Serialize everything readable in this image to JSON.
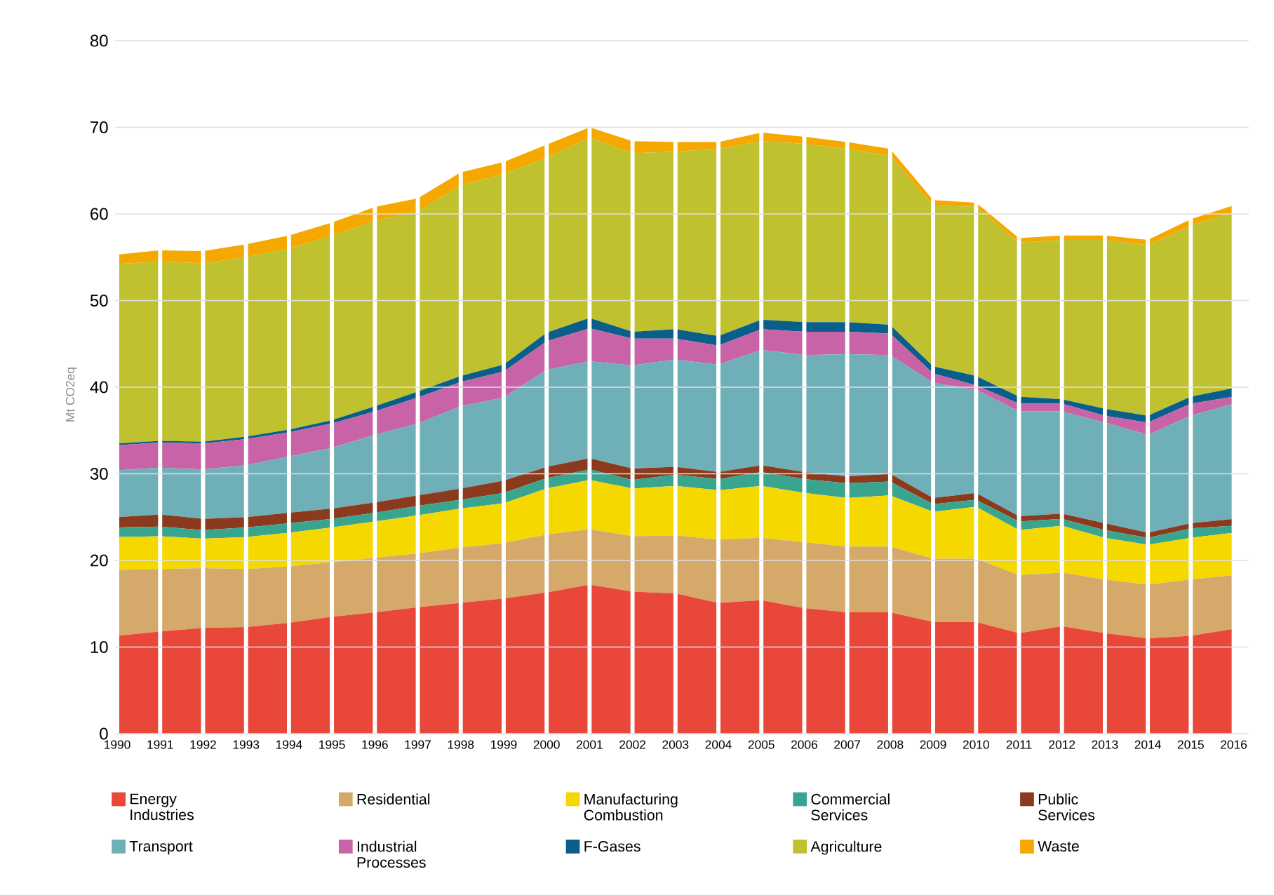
{
  "chart_data": {
    "type": "area",
    "stacked": true,
    "ylabel": "Mt CO2eq",
    "ylim": [
      0,
      80
    ],
    "yticks": [
      0,
      10,
      20,
      30,
      40,
      50,
      60,
      70,
      80
    ],
    "grid": true,
    "legend": "bottom",
    "categories": [
      "1990",
      "1991",
      "1992",
      "1993",
      "1994",
      "1995",
      "1996",
      "1997",
      "1998",
      "1999",
      "2000",
      "2001",
      "2002",
      "2003",
      "2004",
      "2005",
      "2006",
      "2007",
      "2008",
      "2009",
      "2010",
      "2011",
      "2012",
      "2013",
      "2014",
      "2015",
      "2016"
    ],
    "series": [
      {
        "name": "Energy Industries",
        "color": "#e8473a",
        "values": [
          11.3,
          11.8,
          12.2,
          12.3,
          12.8,
          13.5,
          14.0,
          14.6,
          15.1,
          15.6,
          16.3,
          17.2,
          16.4,
          16.2,
          15.1,
          15.4,
          14.5,
          14.0,
          14.0,
          12.9,
          12.9,
          11.6,
          12.4,
          11.6,
          11.0,
          11.3,
          12.1
        ]
      },
      {
        "name": "Residential",
        "color": "#d4a96a",
        "values": [
          7.6,
          7.2,
          6.9,
          6.7,
          6.5,
          6.3,
          6.3,
          6.2,
          6.4,
          6.4,
          6.7,
          6.4,
          6.4,
          6.7,
          7.3,
          7.2,
          7.6,
          7.6,
          7.6,
          7.3,
          7.3,
          6.7,
          6.2,
          6.2,
          6.2,
          6.5,
          6.2
        ]
      },
      {
        "name": "Manufacturing Combustion",
        "color": "#f5d800",
        "values": [
          3.8,
          3.8,
          3.4,
          3.7,
          3.9,
          4.0,
          4.2,
          4.4,
          4.5,
          4.6,
          5.3,
          5.7,
          5.5,
          5.7,
          5.7,
          6.0,
          5.7,
          5.6,
          5.9,
          5.4,
          6.0,
          5.2,
          5.4,
          4.8,
          4.6,
          4.8,
          4.9
        ]
      },
      {
        "name": "Commercial Services",
        "color": "#3aa58f",
        "values": [
          1.1,
          1.1,
          1.0,
          1.1,
          1.1,
          1.0,
          1.0,
          1.1,
          1.0,
          1.2,
          1.2,
          1.2,
          1.0,
          1.3,
          1.3,
          1.6,
          1.6,
          1.7,
          1.6,
          0.9,
          0.8,
          1.0,
          0.8,
          0.9,
          0.8,
          1.1,
          0.8
        ]
      },
      {
        "name": "Public Services",
        "color": "#8b3a1e",
        "values": [
          1.2,
          1.4,
          1.3,
          1.2,
          1.2,
          1.2,
          1.2,
          1.2,
          1.3,
          1.4,
          1.3,
          1.3,
          1.3,
          0.9,
          0.8,
          0.8,
          0.8,
          0.8,
          0.9,
          0.7,
          0.8,
          0.6,
          0.6,
          0.8,
          0.6,
          0.6,
          0.8
        ]
      },
      {
        "name": "Transport",
        "color": "#6fb0b8",
        "values": [
          5.4,
          5.4,
          5.7,
          6.0,
          6.5,
          7.0,
          7.8,
          8.3,
          9.5,
          9.6,
          11.2,
          11.2,
          11.9,
          12.4,
          12.4,
          13.3,
          13.5,
          14.1,
          13.7,
          13.3,
          11.9,
          12.1,
          11.8,
          11.6,
          11.3,
          12.4,
          13.3
        ]
      },
      {
        "name": "Industrial Processes",
        "color": "#c863a8",
        "values": [
          2.9,
          2.9,
          3.0,
          3.0,
          2.8,
          2.8,
          2.7,
          3.0,
          2.8,
          3.0,
          3.3,
          3.8,
          3.1,
          2.4,
          2.2,
          2.4,
          2.7,
          2.6,
          2.5,
          1.1,
          0.5,
          0.9,
          0.9,
          0.8,
          1.4,
          1.4,
          0.8
        ]
      },
      {
        "name": "F-Gases",
        "color": "#0a5f8a",
        "values": [
          0.2,
          0.2,
          0.2,
          0.3,
          0.3,
          0.4,
          0.6,
          0.7,
          0.7,
          0.8,
          1.0,
          1.2,
          0.8,
          1.1,
          1.1,
          1.1,
          1.1,
          1.1,
          1.0,
          0.8,
          1.1,
          0.8,
          0.5,
          0.8,
          0.8,
          0.8,
          1.0
        ]
      },
      {
        "name": "Agriculture",
        "color": "#bfc12f",
        "values": [
          20.7,
          20.7,
          20.6,
          20.7,
          20.9,
          21.3,
          21.4,
          20.8,
          22.0,
          22.0,
          20.2,
          20.8,
          20.6,
          20.5,
          21.6,
          20.6,
          20.6,
          20.0,
          19.5,
          18.6,
          19.5,
          17.8,
          18.4,
          19.5,
          19.7,
          19.7,
          20.3
        ]
      },
      {
        "name": "Waste",
        "color": "#f5a800",
        "values": [
          1.1,
          1.3,
          1.4,
          1.5,
          1.5,
          1.5,
          1.6,
          1.5,
          1.5,
          1.4,
          1.5,
          1.2,
          1.4,
          1.1,
          0.8,
          1.0,
          0.8,
          0.8,
          0.8,
          0.6,
          0.5,
          0.5,
          0.5,
          0.5,
          0.6,
          0.8,
          0.8
        ]
      }
    ]
  }
}
